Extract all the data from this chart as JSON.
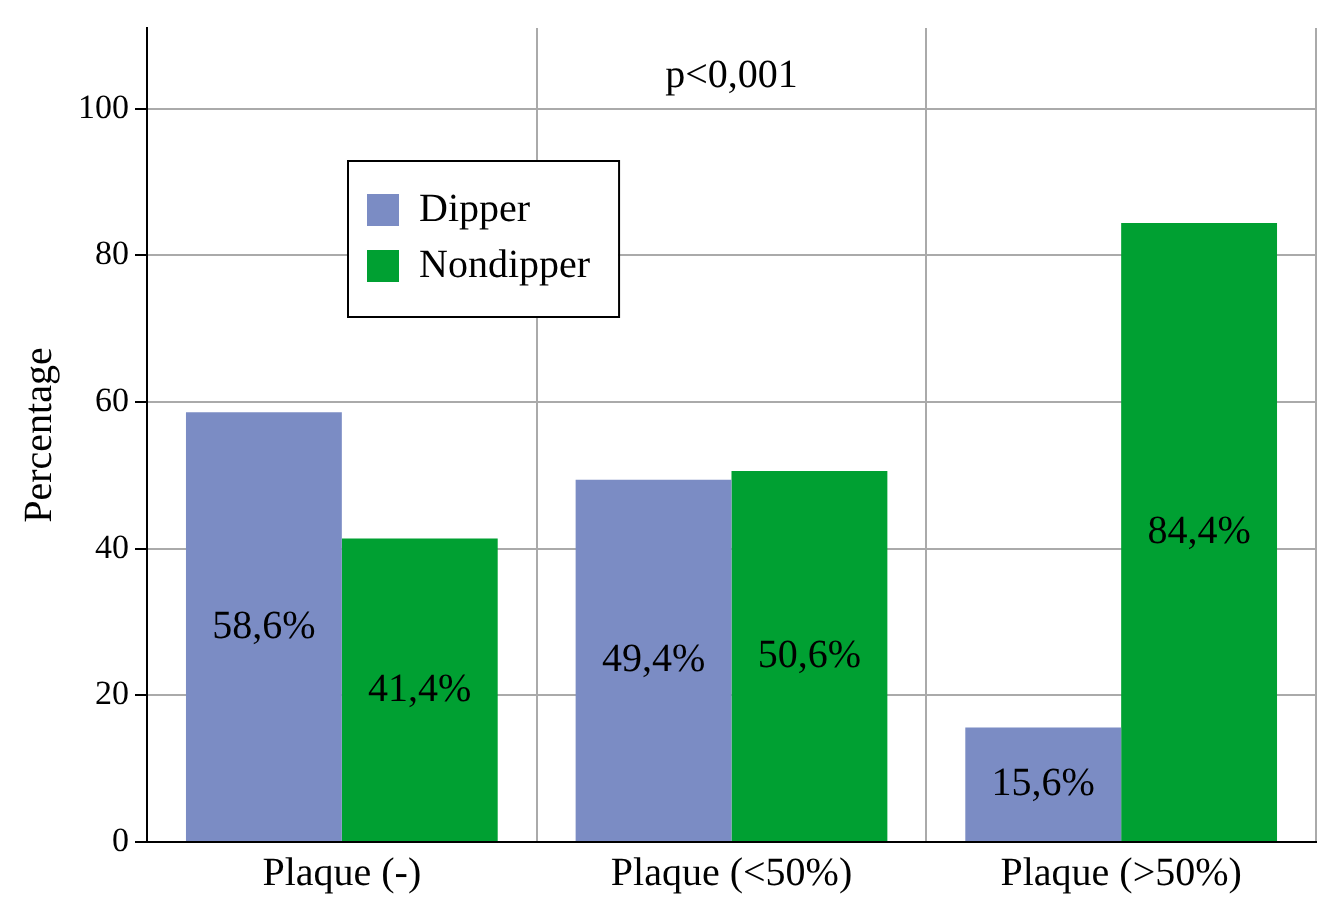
{
  "chart_data": {
    "type": "bar",
    "ylabel": "Percentage",
    "categories": [
      "Plaque (-)",
      "Plaque (<50%)",
      "Plaque (>50%)"
    ],
    "series": [
      {
        "name": "Dipper",
        "color": "#7b8cc4",
        "values": [
          58.6,
          49.4,
          15.6
        ],
        "value_labels": [
          "58,6%",
          "49,4%",
          "15,6%"
        ]
      },
      {
        "name": "Nondipper",
        "color": "#00a032",
        "values": [
          41.4,
          50.6,
          84.4
        ],
        "value_labels": [
          "41,4%",
          "50,6%",
          "84,4%"
        ]
      }
    ],
    "ylim": [
      0,
      111
    ],
    "yticks": [
      0,
      20,
      40,
      60,
      80,
      100
    ],
    "grid": true,
    "legend": "top left",
    "annotations": [
      "p<0,001"
    ]
  }
}
